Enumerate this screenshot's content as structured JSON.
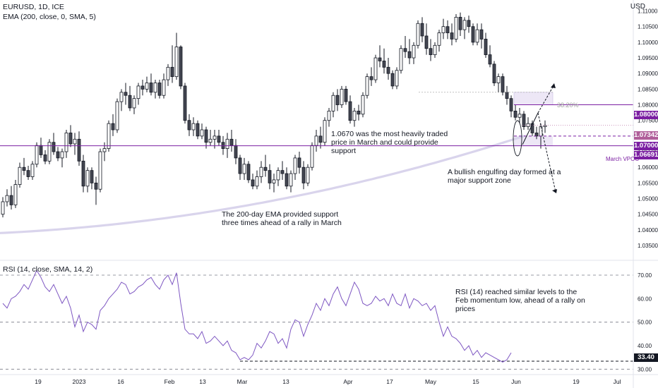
{
  "legend": {
    "symbol": "EURUSD, 1D, ICE",
    "ema": "EMA (200, close, 0, SMA, 5)",
    "rsi": "RSI (14, close, SMA, 14, 2)"
  },
  "currency": "USD",
  "annotations": {
    "ema_support": "The 200-day EMA provided support\nthree times ahead of a rally in March",
    "traded": "1.0670 was the most heavily traded\nprice in March and could provide\nsupport",
    "engulf": "A bullish engulfing day formed at a\nmajor support zone",
    "rsi_note": "RSI (14) reached similar levels to the\nFeb momentum low, ahead of a rally on\nprices",
    "fib": "38.20%",
    "vpoc": "March VPOC"
  },
  "price_tags": {
    "level_1": "1.08000",
    "last": "1.07342",
    "level_2": "1.07000",
    "vpoc": "1.06691",
    "rsi_level": "33.40"
  },
  "colors": {
    "up": "#ffffff",
    "down": "#434651",
    "candle_border": "#131722",
    "ema": "#d9d4ec",
    "rsi": "#7e57c2",
    "vpoc": "#7b1fa2",
    "zone": "#ede7f6",
    "dashed": "#131722"
  },
  "chart_data": [
    {
      "type": "candlestick",
      "title": "EURUSD, 1D, ICE",
      "y_axis": {
        "ticks": [
          "1.11000",
          "1.10500",
          "1.10000",
          "1.09500",
          "1.09000",
          "1.08500",
          "1.08000",
          "1.07500",
          "1.07000",
          "1.06500",
          "1.06000",
          "1.05500",
          "1.05000",
          "1.04500",
          "1.04000",
          "1.03500"
        ],
        "range": [
          1.0305,
          1.1135
        ]
      },
      "x_axis": {
        "ticks": [
          "19",
          "2023",
          "16",
          "Feb",
          "13",
          "Mar",
          "13",
          "Apr",
          "17",
          "May",
          "15",
          "Jun",
          "19",
          "Jul"
        ]
      },
      "ohlc": [
        [
          1.045,
          1.0505,
          1.044,
          1.049
        ],
        [
          1.049,
          1.053,
          1.0475,
          1.051
        ],
        [
          1.051,
          1.054,
          1.0465,
          1.048
        ],
        [
          1.048,
          1.056,
          1.047,
          1.0545
        ],
        [
          1.0545,
          1.0615,
          1.0535,
          1.06
        ],
        [
          1.06,
          1.063,
          1.0575,
          1.059
        ],
        [
          1.059,
          1.0605,
          1.056,
          1.057
        ],
        [
          1.057,
          1.062,
          1.056,
          1.061
        ],
        [
          1.061,
          1.068,
          1.06,
          1.067
        ],
        [
          1.067,
          1.0695,
          1.063,
          1.064
        ],
        [
          1.064,
          1.0655,
          1.061,
          1.062
        ],
        [
          1.062,
          1.069,
          1.061,
          1.068
        ],
        [
          1.068,
          1.071,
          1.064,
          1.065
        ],
        [
          1.065,
          1.0665,
          1.062,
          1.063
        ],
        [
          1.063,
          1.066,
          1.06,
          1.065
        ],
        [
          1.065,
          1.072,
          1.063,
          1.071
        ],
        [
          1.071,
          1.0735,
          1.0665,
          1.0675
        ],
        [
          1.0675,
          1.071,
          1.064,
          1.069
        ],
        [
          1.069,
          1.0715,
          1.0605,
          1.062
        ],
        [
          1.062,
          1.064,
          1.052,
          1.054
        ],
        [
          1.054,
          1.06,
          1.052,
          1.059
        ],
        [
          1.059,
          1.06,
          1.053,
          1.055
        ],
        [
          1.055,
          1.057,
          1.048,
          1.053
        ],
        [
          1.053,
          1.066,
          1.052,
          1.065
        ],
        [
          1.065,
          1.068,
          1.062,
          1.066
        ],
        [
          1.066,
          1.075,
          1.065,
          1.074
        ],
        [
          1.074,
          1.077,
          1.07,
          1.072
        ],
        [
          1.072,
          1.082,
          1.071,
          1.081
        ],
        [
          1.081,
          1.085,
          1.078,
          1.084
        ],
        [
          1.084,
          1.087,
          1.08,
          1.083
        ],
        [
          1.083,
          1.086,
          1.078,
          1.079
        ],
        [
          1.079,
          1.083,
          1.077,
          1.082
        ],
        [
          1.082,
          1.087,
          1.08,
          1.086
        ],
        [
          1.086,
          1.088,
          1.083,
          1.085
        ],
        [
          1.085,
          1.089,
          1.084,
          1.087
        ],
        [
          1.087,
          1.09,
          1.083,
          1.084
        ],
        [
          1.084,
          1.088,
          1.082,
          1.087
        ],
        [
          1.087,
          1.088,
          1.082,
          1.083
        ],
        [
          1.083,
          1.09,
          1.082,
          1.088
        ],
        [
          1.088,
          1.093,
          1.086,
          1.092
        ],
        [
          1.092,
          1.099,
          1.087,
          1.089
        ],
        [
          1.089,
          1.103,
          1.088,
          1.0985
        ],
        [
          1.0985,
          1.099,
          1.085,
          1.086
        ],
        [
          1.086,
          1.087,
          1.074,
          1.075
        ],
        [
          1.075,
          1.077,
          1.07,
          1.072
        ],
        [
          1.072,
          1.076,
          1.07,
          1.074
        ],
        [
          1.074,
          1.075,
          1.069,
          1.07
        ],
        [
          1.07,
          1.074,
          1.069,
          1.072
        ],
        [
          1.072,
          1.073,
          1.066,
          1.068
        ],
        [
          1.068,
          1.072,
          1.067,
          1.069
        ],
        [
          1.069,
          1.072,
          1.066,
          1.07
        ],
        [
          1.07,
          1.072,
          1.067,
          1.068
        ],
        [
          1.068,
          1.07,
          1.064,
          1.066
        ],
        [
          1.066,
          1.071,
          1.063,
          1.069
        ],
        [
          1.069,
          1.072,
          1.065,
          1.067
        ],
        [
          1.067,
          1.069,
          1.061,
          1.063
        ],
        [
          1.063,
          1.064,
          1.056,
          1.058
        ],
        [
          1.058,
          1.063,
          1.056,
          1.061
        ],
        [
          1.061,
          1.062,
          1.055,
          1.056
        ],
        [
          1.056,
          1.058,
          1.053,
          1.054
        ],
        [
          1.054,
          1.059,
          1.053,
          1.057
        ],
        [
          1.057,
          1.062,
          1.055,
          1.06
        ],
        [
          1.06,
          1.064,
          1.057,
          1.059
        ],
        [
          1.059,
          1.061,
          1.053,
          1.055
        ],
        [
          1.055,
          1.058,
          1.052,
          1.056
        ],
        [
          1.056,
          1.06,
          1.054,
          1.059
        ],
        [
          1.059,
          1.062,
          1.056,
          1.058
        ],
        [
          1.058,
          1.06,
          1.053,
          1.054
        ],
        [
          1.054,
          1.059,
          1.052,
          1.058
        ],
        [
          1.058,
          1.064,
          1.056,
          1.063
        ],
        [
          1.063,
          1.065,
          1.058,
          1.06
        ],
        [
          1.06,
          1.062,
          1.053,
          1.055
        ],
        [
          1.055,
          1.061,
          1.054,
          1.06
        ],
        [
          1.06,
          1.068,
          1.059,
          1.067
        ],
        [
          1.067,
          1.072,
          1.065,
          1.07
        ],
        [
          1.07,
          1.073,
          1.066,
          1.068
        ],
        [
          1.068,
          1.076,
          1.067,
          1.075
        ],
        [
          1.075,
          1.079,
          1.073,
          1.078
        ],
        [
          1.078,
          1.084,
          1.076,
          1.083
        ],
        [
          1.083,
          1.085,
          1.078,
          1.08
        ],
        [
          1.08,
          1.086,
          1.079,
          1.085
        ],
        [
          1.085,
          1.086,
          1.08,
          1.081
        ],
        [
          1.081,
          1.083,
          1.074,
          1.075
        ],
        [
          1.075,
          1.079,
          1.073,
          1.078
        ],
        [
          1.078,
          1.08,
          1.075,
          1.077
        ],
        [
          1.077,
          1.084,
          1.076,
          1.083
        ],
        [
          1.083,
          1.09,
          1.082,
          1.089
        ],
        [
          1.089,
          1.092,
          1.086,
          1.088
        ],
        [
          1.088,
          1.096,
          1.087,
          1.095
        ],
        [
          1.095,
          1.099,
          1.092,
          1.094
        ],
        [
          1.094,
          1.098,
          1.09,
          1.092
        ],
        [
          1.092,
          1.095,
          1.088,
          1.09
        ],
        [
          1.09,
          1.091,
          1.085,
          1.086
        ],
        [
          1.086,
          1.092,
          1.085,
          1.091
        ],
        [
          1.091,
          1.099,
          1.09,
          1.098
        ],
        [
          1.098,
          1.102,
          1.095,
          1.097
        ],
        [
          1.097,
          1.101,
          1.093,
          1.095
        ],
        [
          1.095,
          1.1,
          1.093,
          1.099
        ],
        [
          1.099,
          1.107,
          1.098,
          1.106
        ],
        [
          1.106,
          1.108,
          1.1,
          1.102
        ],
        [
          1.102,
          1.106,
          1.096,
          1.098
        ],
        [
          1.098,
          1.101,
          1.094,
          1.096
        ],
        [
          1.096,
          1.1,
          1.095,
          1.099
        ],
        [
          1.099,
          1.104,
          1.097,
          1.103
        ],
        [
          1.103,
          1.1075,
          1.101,
          1.105
        ],
        [
          1.105,
          1.107,
          1.101,
          1.103
        ],
        [
          1.103,
          1.106,
          1.099,
          1.101
        ],
        [
          1.101,
          1.109,
          1.1,
          1.108
        ],
        [
          1.108,
          1.1095,
          1.102,
          1.104
        ],
        [
          1.104,
          1.108,
          1.101,
          1.107
        ],
        [
          1.107,
          1.1085,
          1.103,
          1.105
        ],
        [
          1.105,
          1.106,
          1.099,
          1.1
        ],
        [
          1.1,
          1.106,
          1.099,
          1.104
        ],
        [
          1.104,
          1.106,
          1.098,
          1.101
        ],
        [
          1.101,
          1.103,
          1.095,
          1.096
        ],
        [
          1.096,
          1.099,
          1.092,
          1.093
        ],
        [
          1.093,
          1.094,
          1.086,
          1.087
        ],
        [
          1.087,
          1.09,
          1.084,
          1.089
        ],
        [
          1.089,
          1.09,
          1.083,
          1.084
        ],
        [
          1.084,
          1.086,
          1.08,
          1.082
        ],
        [
          1.082,
          1.083,
          1.076,
          1.078
        ],
        [
          1.078,
          1.08,
          1.075,
          1.076
        ],
        [
          1.076,
          1.079,
          1.074,
          1.077
        ],
        [
          1.077,
          1.078,
          1.072,
          1.073
        ],
        [
          1.073,
          1.076,
          1.072,
          1.074
        ],
        [
          1.074,
          1.075,
          1.07,
          1.071
        ],
        [
          1.071,
          1.073,
          1.069,
          1.07
        ],
        [
          1.07,
          1.074,
          1.066,
          1.073
        ],
        [
          1.073,
          1.075,
          1.071,
          1.0734
        ]
      ],
      "ema_200": {
        "start": 1.039,
        "end": 1.07
      },
      "levels": {
        "resistance": 1.08,
        "support": 1.07,
        "march_vpoc": 1.06691,
        "last": 1.07342,
        "fib_38_2": 1.084
      }
    },
    {
      "type": "line",
      "title": "RSI (14, close, SMA, 14, 2)",
      "y_axis": {
        "ticks": [
          "70.00",
          "60.00",
          "50.00",
          "40.00",
          "30.00"
        ],
        "range": [
          28,
          76
        ]
      },
      "levels": {
        "upper": 70,
        "mid": 50,
        "lower": 30,
        "marked": 33.4
      },
      "values": [
        58,
        56,
        60,
        61,
        63,
        66,
        64,
        68,
        72,
        69,
        65,
        63,
        66,
        62,
        58,
        61,
        56,
        48,
        53,
        46,
        50,
        49,
        47,
        55,
        57,
        60,
        62,
        64,
        67,
        66,
        62,
        63,
        65,
        66,
        68,
        69,
        66,
        64,
        68,
        70,
        66,
        71,
        58,
        47,
        45,
        45,
        43,
        46,
        41,
        42,
        44,
        42,
        40,
        42,
        38,
        37,
        34,
        35,
        34,
        36,
        41,
        39,
        42,
        46,
        45,
        41,
        43,
        39,
        47,
        51,
        50,
        44,
        49,
        53,
        58,
        55,
        60,
        57,
        62,
        65,
        60,
        57,
        62,
        67,
        64,
        58,
        57,
        58,
        61,
        59,
        60,
        57,
        62,
        58,
        57,
        62,
        56,
        60,
        59,
        57,
        58,
        55,
        57,
        50,
        44,
        48,
        44,
        43,
        41,
        38,
        40,
        36,
        38,
        35,
        37,
        36,
        35,
        34,
        33,
        34,
        37
      ]
    }
  ]
}
